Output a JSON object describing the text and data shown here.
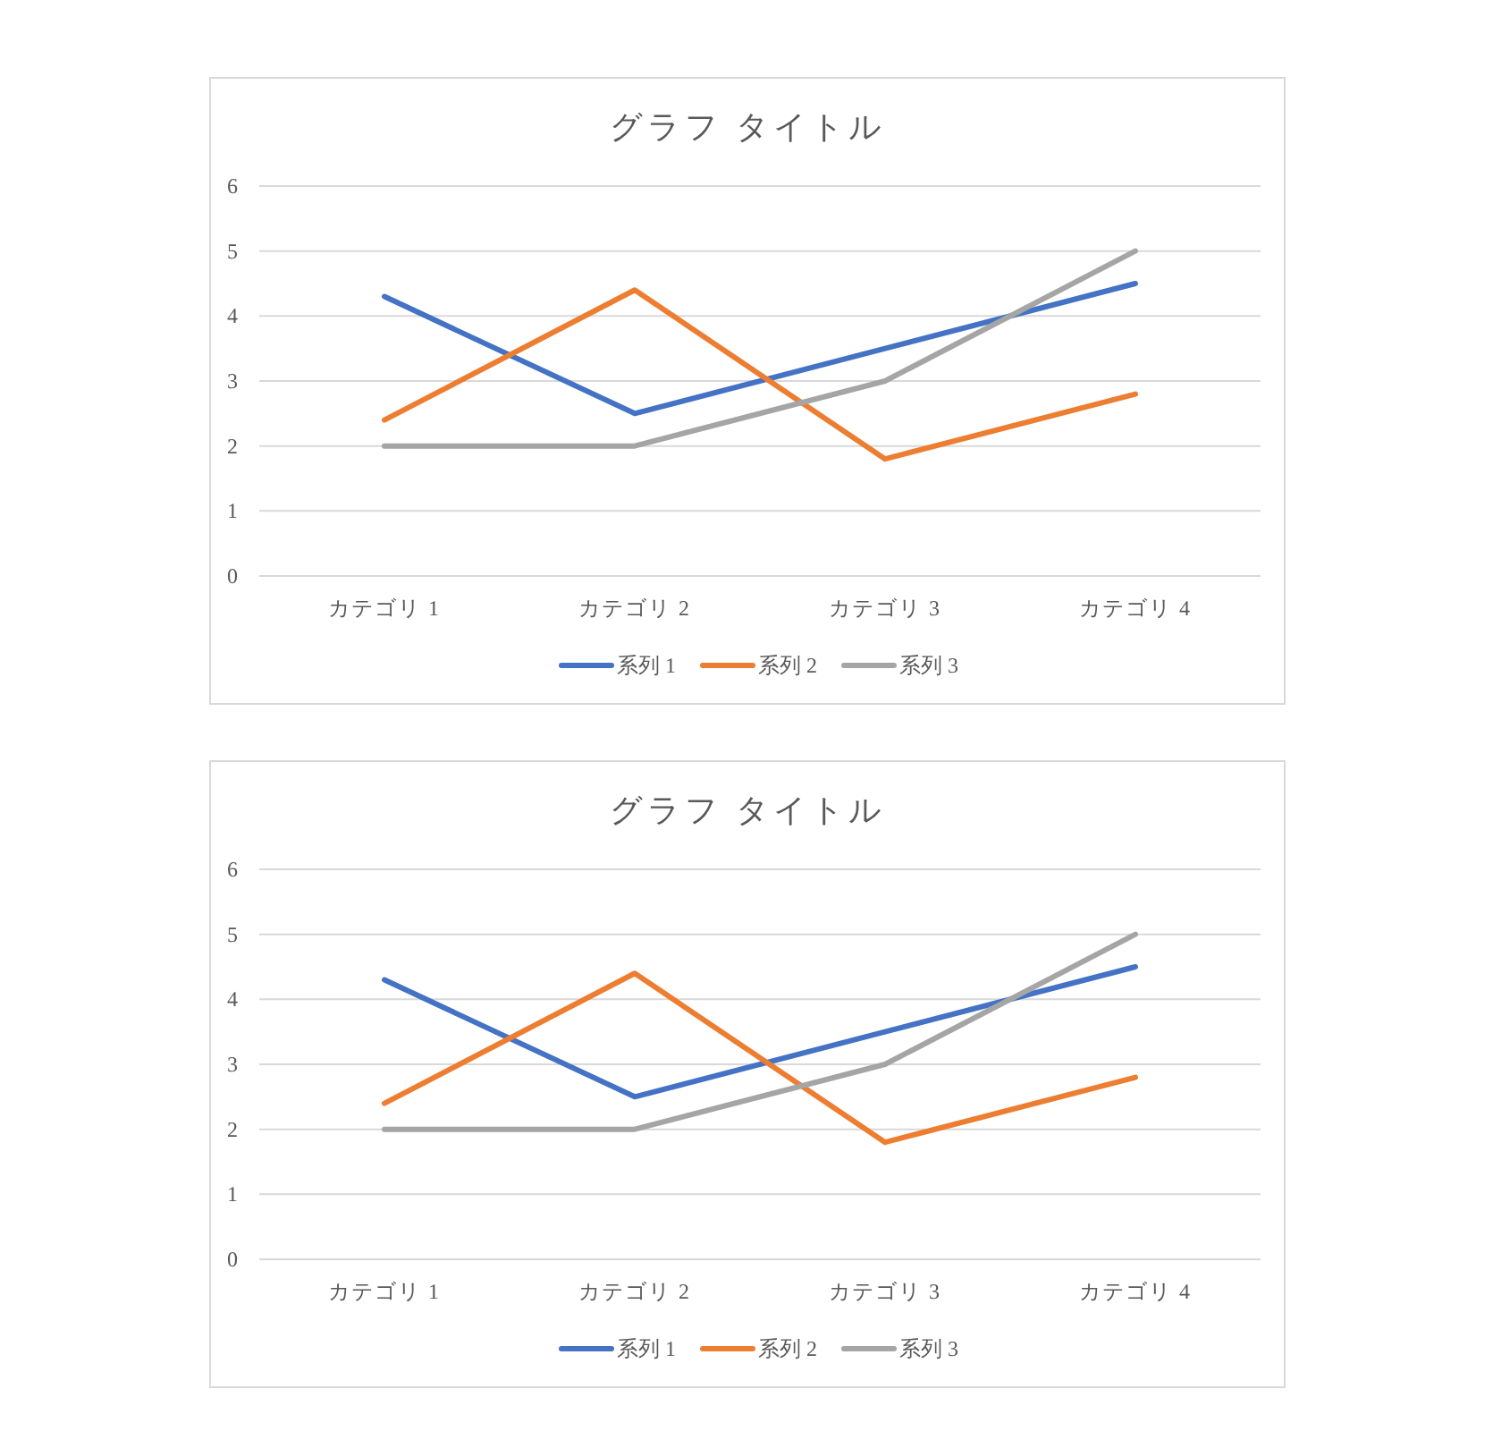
{
  "chart_data": [
    {
      "type": "line",
      "title": "グラフ タイトル",
      "categories": [
        "カテゴリ 1",
        "カテゴリ 2",
        "カテゴリ 3",
        "カテゴリ 4"
      ],
      "series": [
        {
          "name": "系列 1",
          "color": "#4472c4",
          "values": [
            4.3,
            2.5,
            3.5,
            4.5
          ]
        },
        {
          "name": "系列 2",
          "color": "#ed7d31",
          "values": [
            2.4,
            4.4,
            1.8,
            2.8
          ]
        },
        {
          "name": "系列 3",
          "color": "#a5a5a5",
          "values": [
            2,
            2,
            3,
            5
          ]
        }
      ],
      "ylim": [
        0,
        6
      ],
      "yticks": [
        0,
        1,
        2,
        3,
        4,
        5,
        6
      ],
      "grid": "y",
      "legend": "bottom"
    },
    {
      "type": "line",
      "title": "グラフ タイトル",
      "categories": [
        "カテゴリ 1",
        "カテゴリ 2",
        "カテゴリ 3",
        "カテゴリ 4"
      ],
      "series": [
        {
          "name": "系列 1",
          "color": "#4472c4",
          "values": [
            4.3,
            2.5,
            3.5,
            4.5
          ]
        },
        {
          "name": "系列 2",
          "color": "#ed7d31",
          "values": [
            2.4,
            4.4,
            1.8,
            2.8
          ]
        },
        {
          "name": "系列 3",
          "color": "#a5a5a5",
          "values": [
            2,
            2,
            3,
            5
          ]
        }
      ],
      "ylim": [
        0,
        6
      ],
      "yticks": [
        0,
        1,
        2,
        3,
        4,
        5,
        6
      ],
      "grid": "y",
      "legend": "bottom"
    }
  ]
}
